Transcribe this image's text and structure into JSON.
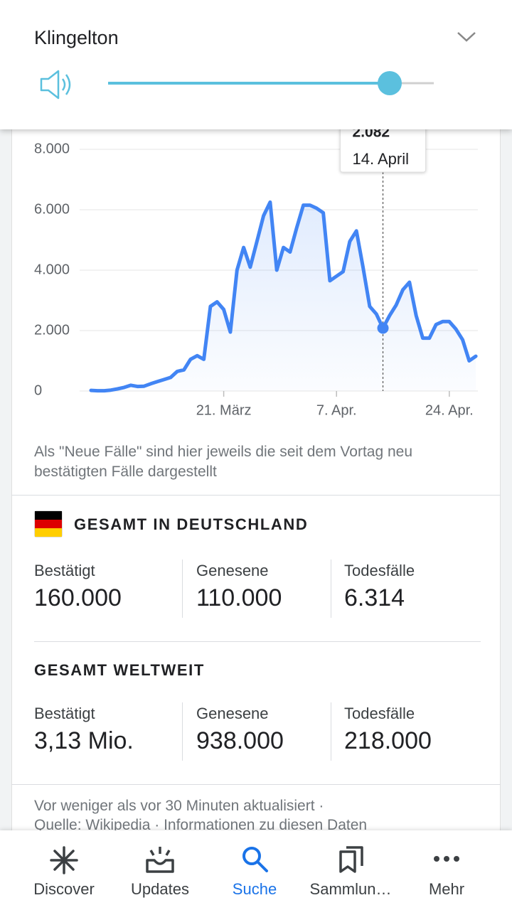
{
  "volume_panel": {
    "title": "Klingelton"
  },
  "chart_data": {
    "type": "line",
    "color": "#4285f4",
    "categories": [
      null,
      null,
      null,
      null,
      null,
      null,
      null,
      null,
      null,
      null,
      null,
      null,
      null,
      null,
      null,
      null,
      null,
      null,
      null,
      null,
      "21. März",
      null,
      null,
      null,
      null,
      null,
      null,
      null,
      null,
      null,
      null,
      null,
      null,
      null,
      null,
      null,
      null,
      "7. Apr.",
      null,
      null,
      null,
      null,
      null,
      null,
      null,
      null,
      null,
      null,
      null,
      null,
      null,
      null,
      null,
      null,
      "24. Apr.",
      null,
      null,
      null,
      null
    ],
    "values": [
      20,
      10,
      10,
      30,
      70,
      120,
      190,
      150,
      160,
      240,
      310,
      380,
      450,
      650,
      700,
      1050,
      1170,
      1050,
      2800,
      2950,
      2700,
      1950,
      4000,
      4750,
      4100,
      4950,
      5800,
      6250,
      4000,
      4750,
      4600,
      5400,
      6150,
      6150,
      6050,
      5900,
      3650,
      3800,
      3950,
      4950,
      5300,
      4100,
      2800,
      2550,
      2082,
      2500,
      2850,
      3350,
      3600,
      2500,
      1750,
      1750,
      2200,
      2300,
      2300,
      2050,
      1700,
      1000,
      1150
    ],
    "value_labels": [
      null,
      null,
      null,
      null,
      null,
      null,
      null,
      null,
      null,
      null,
      null,
      null,
      null,
      null,
      null,
      null,
      null,
      null,
      null,
      null,
      null,
      null,
      null,
      null,
      null,
      null,
      null,
      null,
      null,
      null,
      null,
      null,
      null,
      null,
      null,
      null,
      null,
      null,
      null,
      null,
      null,
      null,
      null,
      null,
      "2.082",
      null,
      null,
      null,
      null,
      null,
      null,
      null,
      null,
      null,
      null,
      null,
      null,
      null,
      null
    ],
    "tooltip_date": "14. April",
    "ylim": [
      0,
      8000
    ],
    "yticks": [
      0,
      {
        "value": 2000,
        "label": "2.000"
      },
      {
        "value": 4000,
        "label": "4.000"
      },
      {
        "value": 6000,
        "label": "6.000"
      },
      {
        "value": 8000,
        "label": "8.000"
      }
    ],
    "grid": true
  },
  "note": "Als \"Neue Fälle\" sind hier jeweils die seit dem Vortag neu bestätigten Fälle dargestellt",
  "germany": {
    "heading": "GESAMT IN DEUTSCHLAND",
    "stats": [
      {
        "label": "Bestätigt",
        "value": "160.000"
      },
      {
        "label": "Genesene",
        "value": "110.000"
      },
      {
        "label": "Todesfälle",
        "value": "6.314"
      }
    ]
  },
  "world": {
    "heading": "GESAMT WELTWEIT",
    "stats": [
      {
        "label": "Bestätigt",
        "value": "3,13 Mio."
      },
      {
        "label": "Genesene",
        "value": "938.000"
      },
      {
        "label": "Todesfälle",
        "value": "218.000"
      }
    ]
  },
  "footer": {
    "updated": "Vor weniger als vor 30 Minuten aktualisiert  ·",
    "source": "Quelle:  Wikipedia  ·  Informationen zu diesen Daten"
  },
  "nav": {
    "active": 2,
    "items": [
      "Discover",
      "Updates",
      "Suche",
      "Sammlun…",
      "Mehr"
    ]
  }
}
